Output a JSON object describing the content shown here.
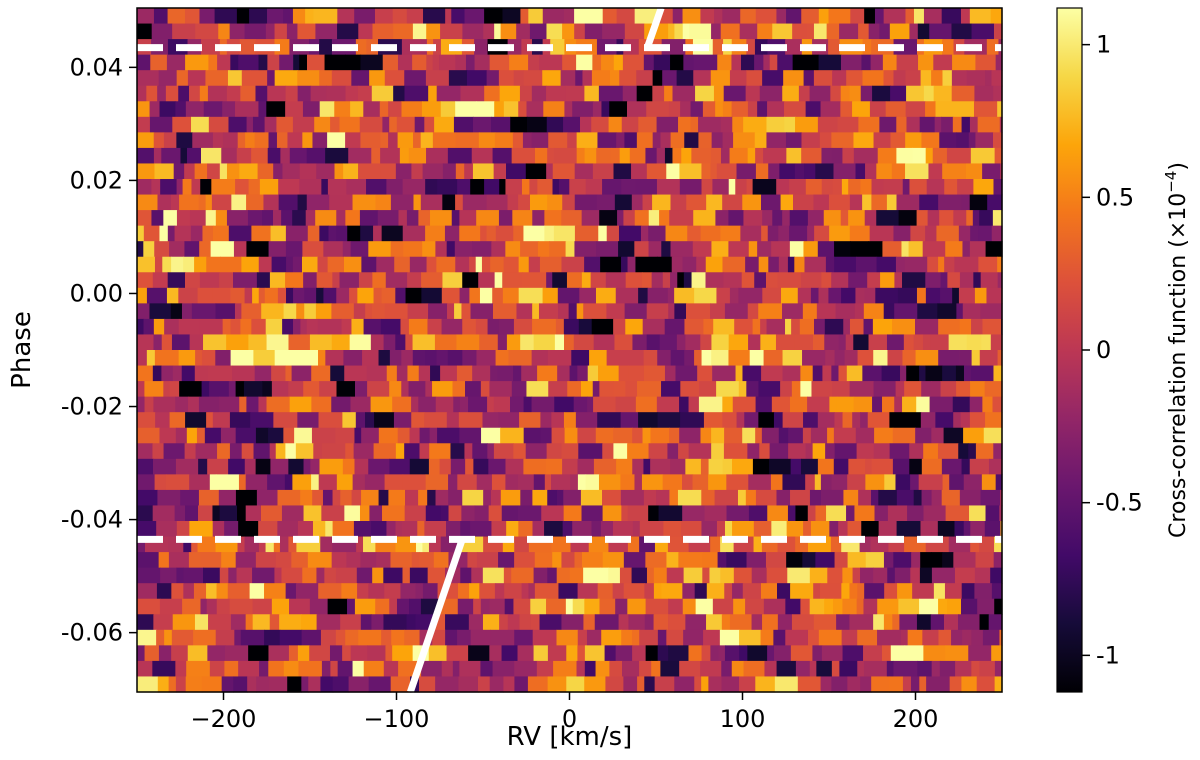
{
  "chart_data": {
    "type": "heatmap",
    "title": "",
    "xlabel": "RV [km/s]",
    "ylabel": "Phase",
    "xlim": [
      -250,
      250
    ],
    "ylim": [
      -0.0705,
      0.0505
    ],
    "x_ticks": [
      -200,
      -100,
      0,
      100,
      200
    ],
    "x_tick_labels": [
      "−200",
      "−100",
      "0",
      "100",
      "200"
    ],
    "y_ticks": [
      -0.06,
      -0.04,
      -0.02,
      0.0,
      0.02,
      0.04
    ],
    "y_tick_labels": [
      "-0.06",
      "-0.04",
      "-0.02",
      "0.00",
      "0.02",
      "0.04"
    ],
    "colormap": "inferno",
    "colorbar": {
      "label_prefix": "Cross-correlation function (×10",
      "label_exponent": "−4",
      "label_suffix": ")",
      "range": [
        -1.12,
        1.12
      ],
      "ticks": [
        -1,
        -0.5,
        0,
        0.5,
        1
      ],
      "tick_labels": [
        "-1",
        "-0.5",
        "0",
        "0.5",
        "1"
      ]
    },
    "transit_boundaries": {
      "style": "dashed",
      "color": "#ffffff",
      "phases": [
        0.0435,
        -0.0435
      ]
    },
    "planet_trace_segments": [
      {
        "rv_start": 45,
        "phase_start": 0.0435,
        "rv_end": 53,
        "phase_end": 0.0505
      },
      {
        "rv_start": -62,
        "phase_start": -0.0435,
        "rv_end": -92,
        "phase_end": -0.0705
      }
    ],
    "grid": false,
    "noise_seed": 20240611
  }
}
